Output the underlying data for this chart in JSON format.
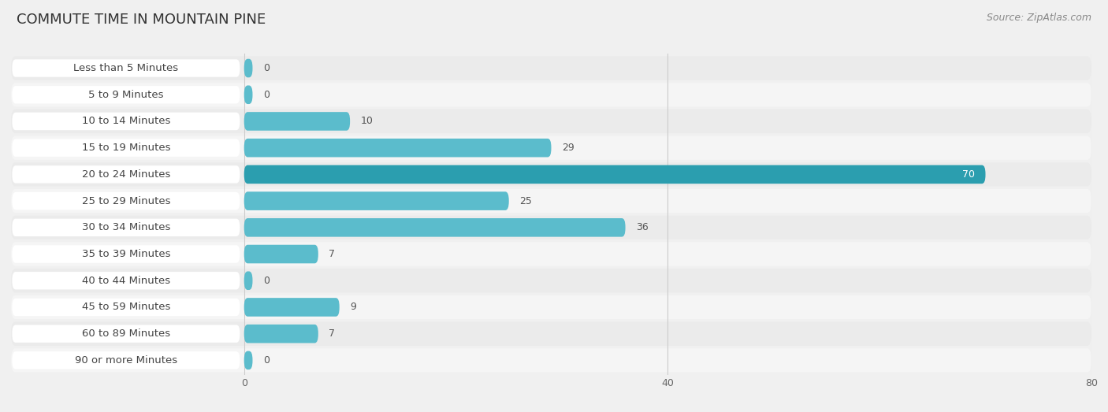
{
  "title": "COMMUTE TIME IN MOUNTAIN PINE",
  "source": "Source: ZipAtlas.com",
  "categories": [
    "Less than 5 Minutes",
    "5 to 9 Minutes",
    "10 to 14 Minutes",
    "15 to 19 Minutes",
    "20 to 24 Minutes",
    "25 to 29 Minutes",
    "30 to 34 Minutes",
    "35 to 39 Minutes",
    "40 to 44 Minutes",
    "45 to 59 Minutes",
    "60 to 89 Minutes",
    "90 or more Minutes"
  ],
  "values": [
    0,
    0,
    10,
    29,
    70,
    25,
    36,
    7,
    0,
    9,
    7,
    0
  ],
  "bar_color_normal": "#5bbccc",
  "bar_color_highlight": "#2b9eaf",
  "highlight_index": 4,
  "xlim_max": 80,
  "xticks": [
    0,
    40,
    80
  ],
  "bg_color": "#f0f0f0",
  "row_bg_even": "#ebebeb",
  "row_bg_odd": "#f5f5f5",
  "label_bg": "#ffffff",
  "title_fontsize": 13,
  "label_fontsize": 9.5,
  "value_fontsize": 9,
  "source_fontsize": 9
}
